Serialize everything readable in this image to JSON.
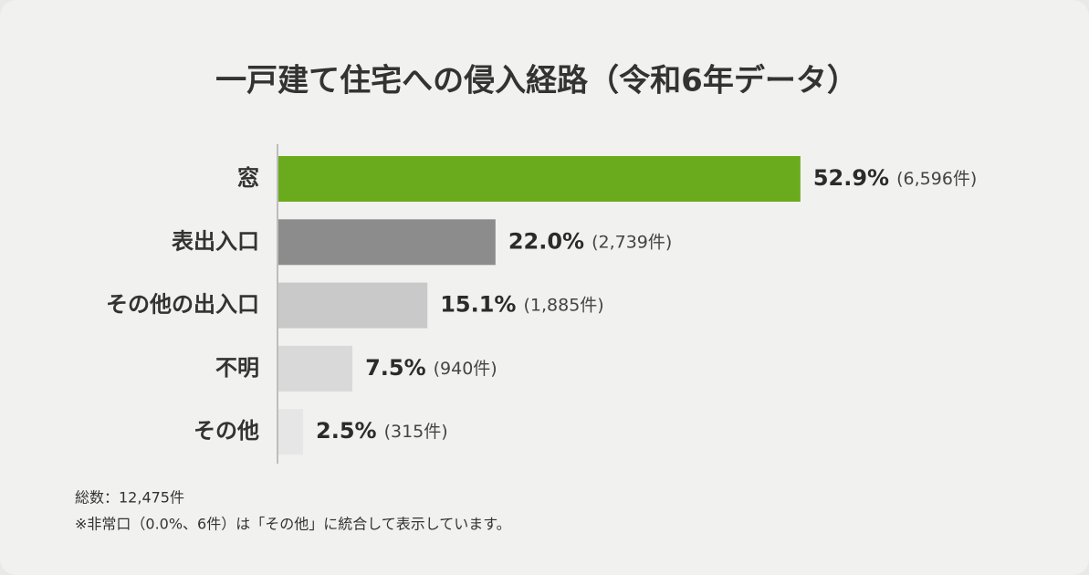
{
  "chart_data": {
    "type": "bar",
    "orientation": "horizontal",
    "title": "一戸建て住宅への侵入経路（令和6年データ）",
    "categories": [
      "窓",
      "表出入口",
      "その他の出入口",
      "不明",
      "その他"
    ],
    "values": [
      52.9,
      22.0,
      15.1,
      7.5,
      2.5
    ],
    "value_labels": [
      "52.9%",
      "22.0%",
      "15.1%",
      "7.5%",
      "2.5%"
    ],
    "count_labels": [
      "(6,596件)",
      "(2,739件)",
      "(1,885件)",
      "(940件)",
      "(315件)"
    ],
    "colors": [
      "#6aab1d",
      "#8c8c8c",
      "#c9c9c9",
      "#d9d9d9",
      "#e6e6e6"
    ],
    "notes": [
      "総数：12,475件",
      "※非常口（0.0%、6件）は「その他」に統合して表示しています。"
    ]
  }
}
